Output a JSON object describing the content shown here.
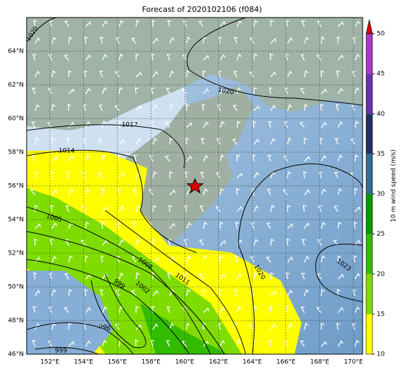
{
  "title": "Forecast of 2020102106 (f084)",
  "lat_labels": [
    "64°N",
    "62°N",
    "60°N",
    "58°N",
    "56°N",
    "54°N",
    "52°N",
    "50°N",
    "48°N",
    "46°N"
  ],
  "lon_labels": [
    "152°E",
    "154°E",
    "156°E",
    "158°E",
    "160°E",
    "162°E",
    "164°E",
    "166°E",
    "168°E",
    "170°E"
  ],
  "contour_labels": [
    "1020",
    "1017",
    "1014",
    "1020",
    "1005",
    "1008",
    "1011",
    "1020",
    "1023",
    "999",
    "1002",
    "996",
    "999"
  ],
  "colorbar": {
    "label": "10 m wind speed (m/s)",
    "ticks": [
      10,
      15,
      20,
      25,
      30,
      35,
      40,
      45,
      50
    ],
    "colors": [
      "#ffff00",
      "#7fdc00",
      "#33bb00",
      "#009a00",
      "#336b99",
      "#1f2f5f",
      "#6633aa",
      "#a838c8"
    ],
    "over_color": "#e00000"
  }
}
